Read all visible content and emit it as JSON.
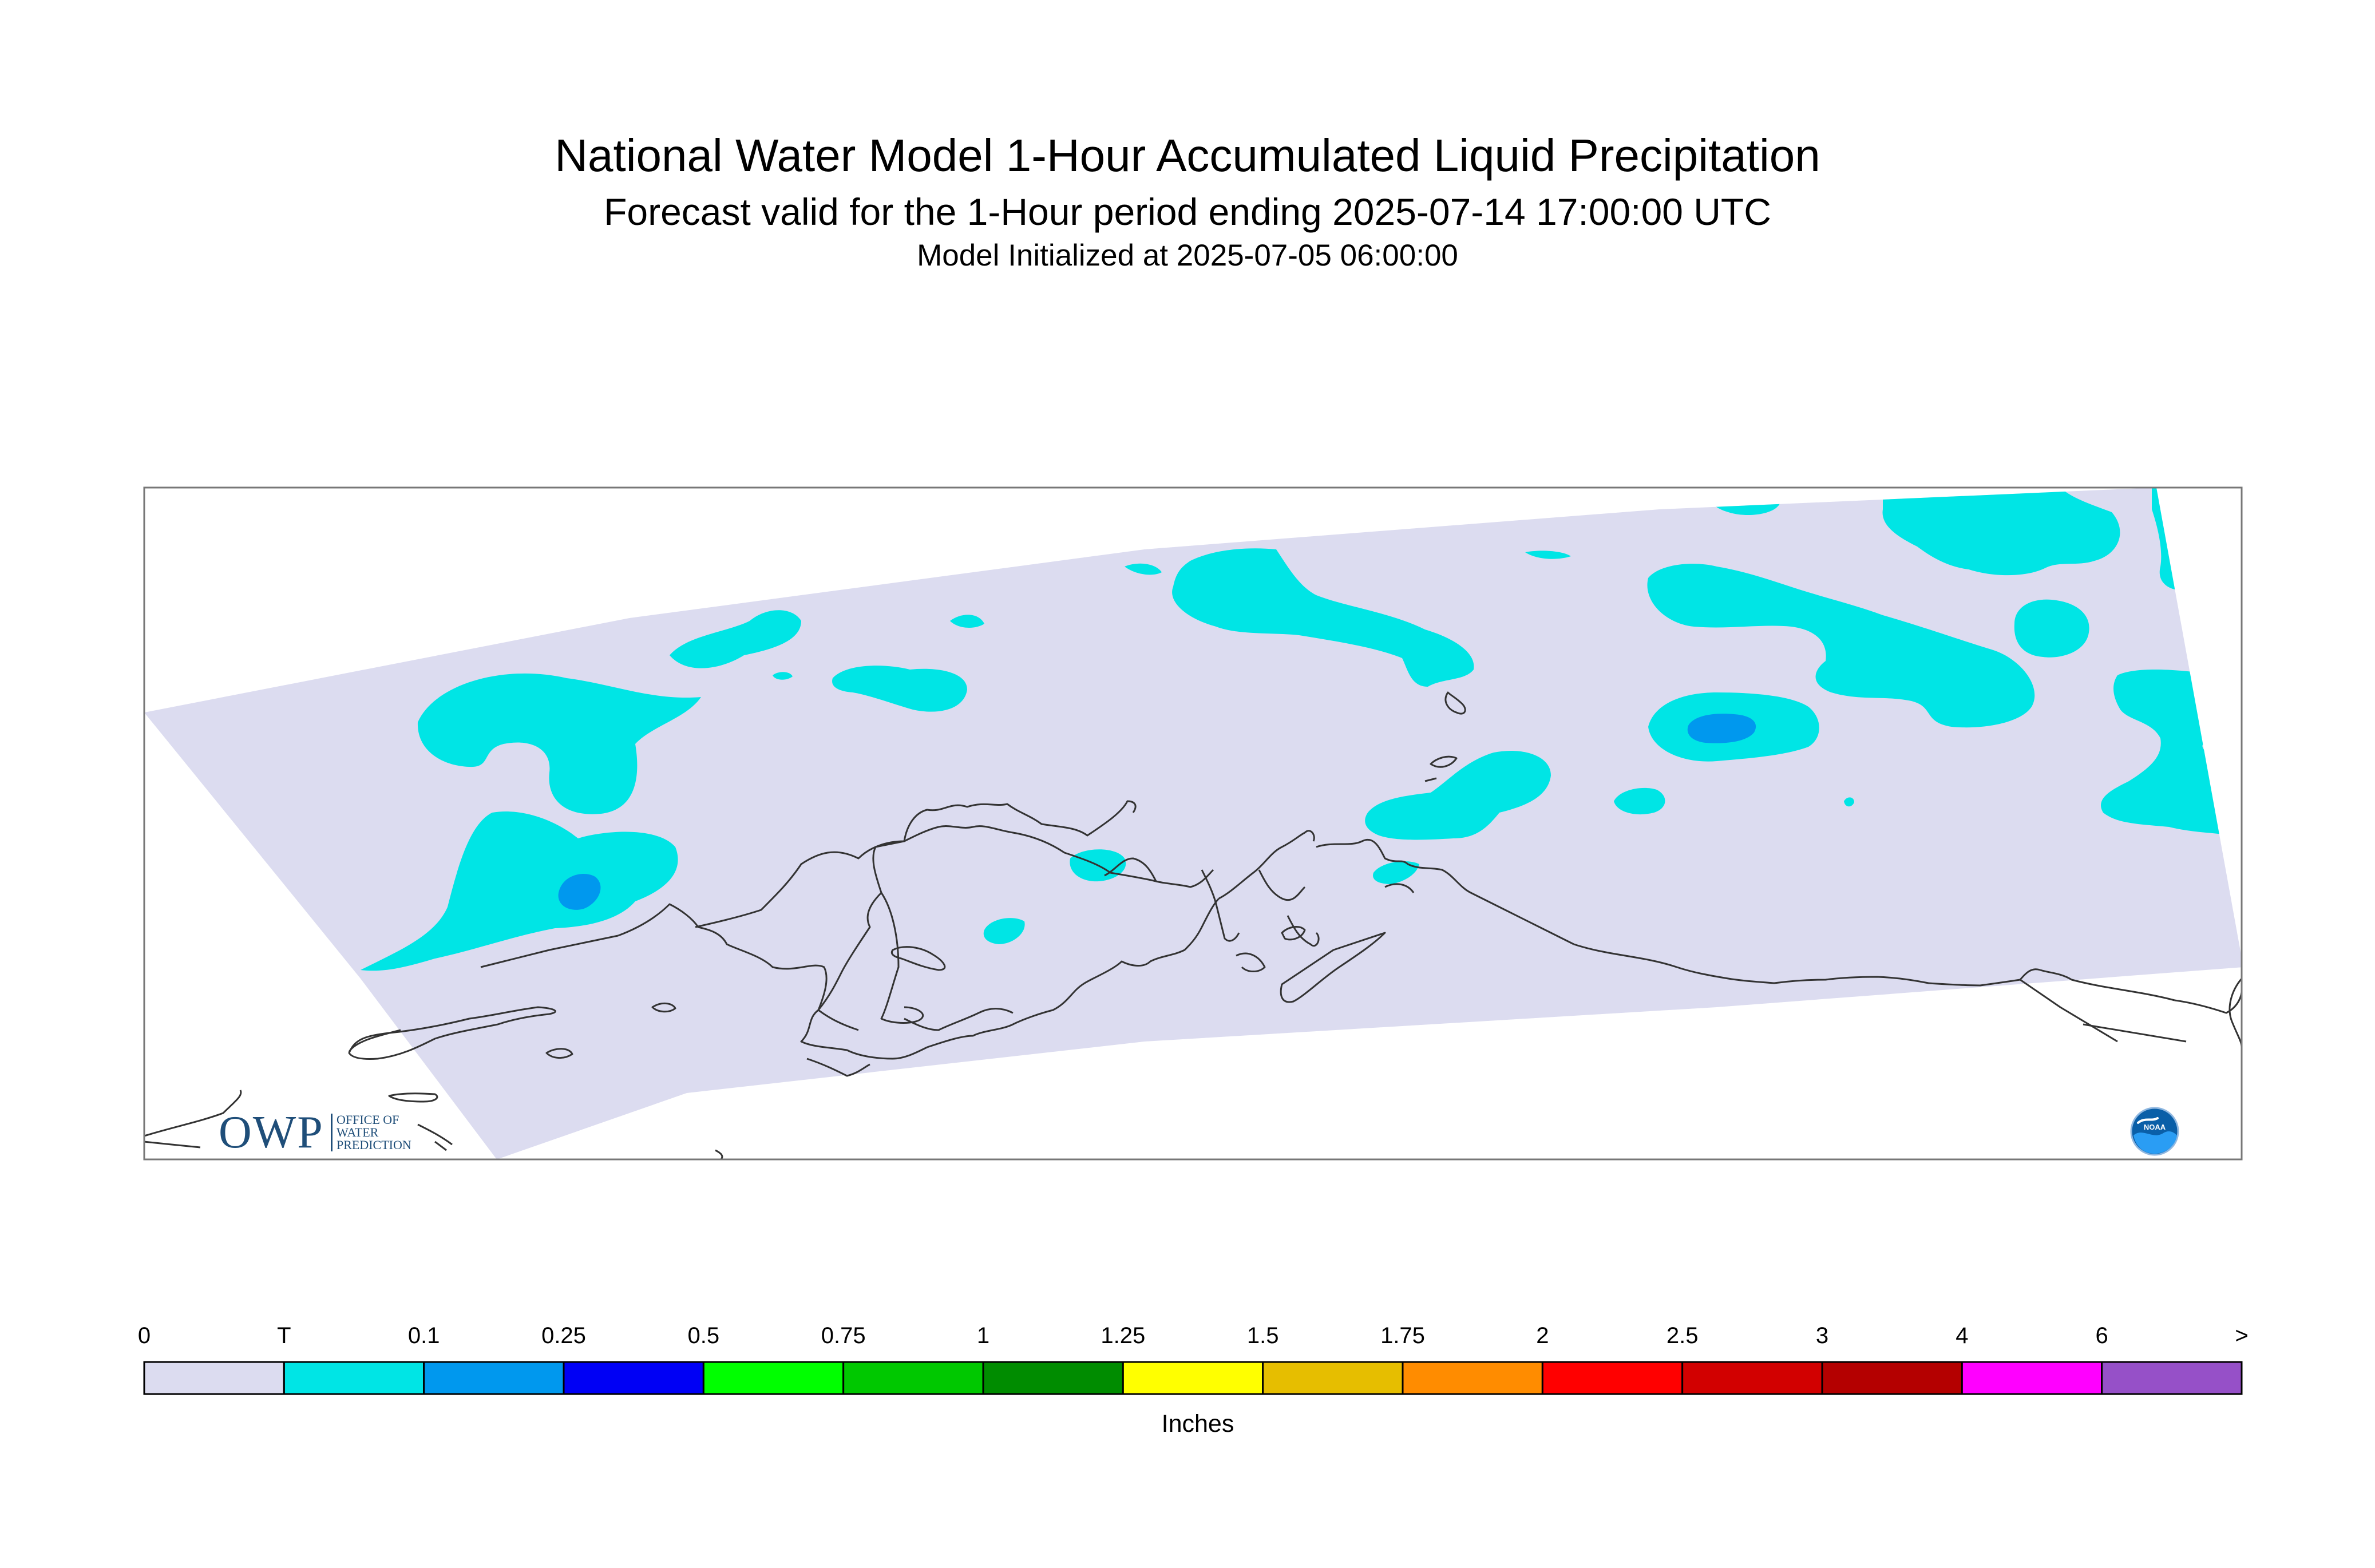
{
  "title": "National Water Model 1-Hour Accumulated Liquid Precipitation",
  "subtitle": "Forecast valid for the 1-Hour period ending 2025-07-14 17:00:00 UTC",
  "init_line": "Model Initialized at 2025-07-05 06:00:00",
  "legend": {
    "units": "Inches",
    "labels": [
      "0",
      "T",
      "0.1",
      "0.25",
      "0.5",
      "0.75",
      "1",
      "1.25",
      "1.5",
      "1.75",
      "2",
      "2.5",
      "3",
      "4",
      "6",
      ">"
    ],
    "colors": [
      "#dcdcf0",
      "#00e5e5",
      "#0098ee",
      "#0000f5",
      "#00ff00",
      "#00c800",
      "#008c00",
      "#ffff00",
      "#e6be00",
      "#ff8c00",
      "#ff0000",
      "#d20000",
      "#b40000",
      "#ff00ff",
      "#9650c8"
    ]
  },
  "logos": {
    "owp_letters": "OWP",
    "owp_lines": [
      "OFFICE OF",
      "WATER",
      "PREDICTION"
    ],
    "noaa_text": "NOAA"
  },
  "map_colors": {
    "domain_fill": "#dcdcf0",
    "trace_fill": "#00e5e5",
    "light_fill": "#0098ee",
    "coast": "#333333"
  }
}
